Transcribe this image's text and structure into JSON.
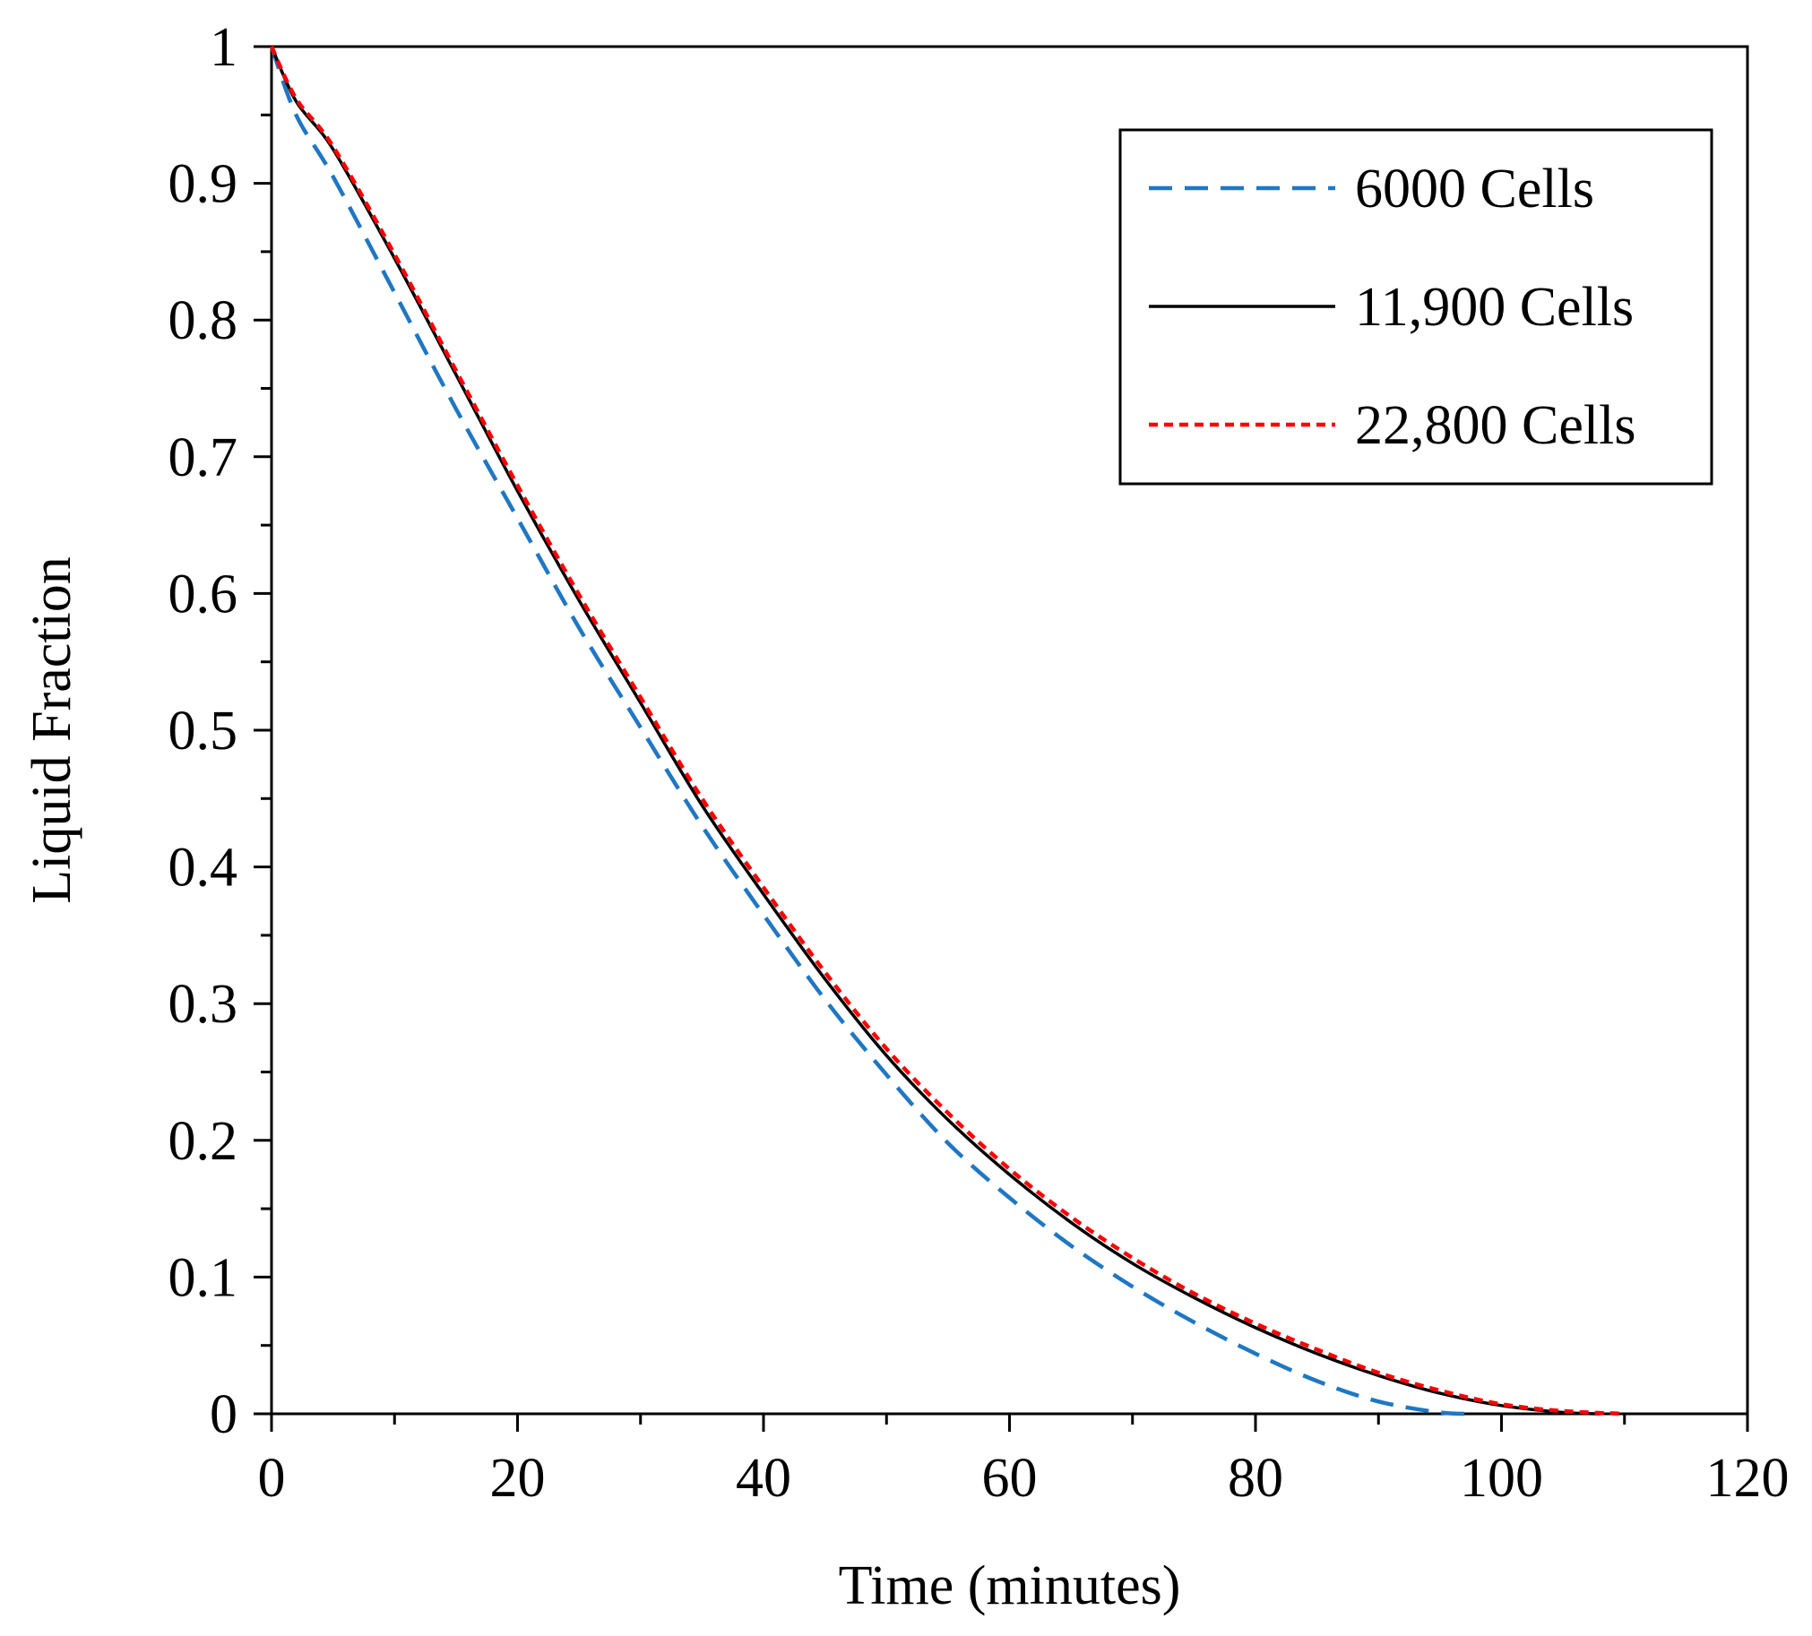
{
  "chart_data": {
    "type": "line",
    "title": "",
    "xlabel": "Time (minutes)",
    "ylabel": "Liquid Fraction",
    "xlim": [
      0,
      120
    ],
    "ylim": [
      0,
      1
    ],
    "xticks": [
      0,
      20,
      40,
      60,
      80,
      100,
      120
    ],
    "xtick_labels": [
      "0",
      "20",
      "40",
      "60",
      "80",
      "100",
      "120"
    ],
    "yticks": [
      0,
      0.1,
      0.2,
      0.3,
      0.4,
      0.5,
      0.6,
      0.7,
      0.8,
      0.9,
      1
    ],
    "ytick_labels": [
      "0",
      "0.1",
      "0.2",
      "0.3",
      "0.4",
      "0.5",
      "0.6",
      "0.7",
      "0.8",
      "0.9",
      "1"
    ],
    "x_minor_step": 10,
    "y_minor_step": 0.05,
    "grid": false,
    "legend_position": "top-right",
    "series": [
      {
        "name": "6000 Cells",
        "color": "#1f77c4",
        "style": "dashed",
        "x": [
          0,
          2,
          5,
          10,
          15,
          20,
          25,
          30,
          35,
          40,
          45,
          50,
          55,
          60,
          65,
          70,
          75,
          80,
          85,
          90,
          95,
          98
        ],
        "y": [
          1.0,
          0.95,
          0.905,
          0.82,
          0.735,
          0.655,
          0.575,
          0.502,
          0.43,
          0.365,
          0.303,
          0.248,
          0.198,
          0.158,
          0.123,
          0.093,
          0.067,
          0.044,
          0.024,
          0.009,
          0.001,
          0.0
        ]
      },
      {
        "name": "11,900 Cells",
        "color": "#000000",
        "style": "solid",
        "x": [
          0,
          2,
          5,
          10,
          15,
          20,
          25,
          30,
          35,
          40,
          45,
          50,
          55,
          60,
          65,
          70,
          75,
          80,
          85,
          90,
          95,
          100,
          105,
          108
        ],
        "y": [
          1.0,
          0.96,
          0.925,
          0.845,
          0.76,
          0.675,
          0.595,
          0.52,
          0.445,
          0.38,
          0.318,
          0.262,
          0.215,
          0.175,
          0.14,
          0.11,
          0.085,
          0.063,
          0.044,
          0.028,
          0.015,
          0.006,
          0.001,
          0.0
        ]
      },
      {
        "name": "22,800 Cells",
        "color": "#ff0000",
        "style": "dotted",
        "x": [
          0,
          2,
          5,
          10,
          15,
          20,
          25,
          30,
          35,
          40,
          45,
          50,
          55,
          60,
          65,
          70,
          75,
          80,
          85,
          90,
          95,
          100,
          105,
          110
        ],
        "y": [
          1.0,
          0.962,
          0.927,
          0.848,
          0.763,
          0.679,
          0.599,
          0.524,
          0.45,
          0.385,
          0.323,
          0.267,
          0.22,
          0.179,
          0.144,
          0.114,
          0.088,
          0.066,
          0.047,
          0.03,
          0.017,
          0.007,
          0.002,
          0.0
        ]
      }
    ]
  }
}
